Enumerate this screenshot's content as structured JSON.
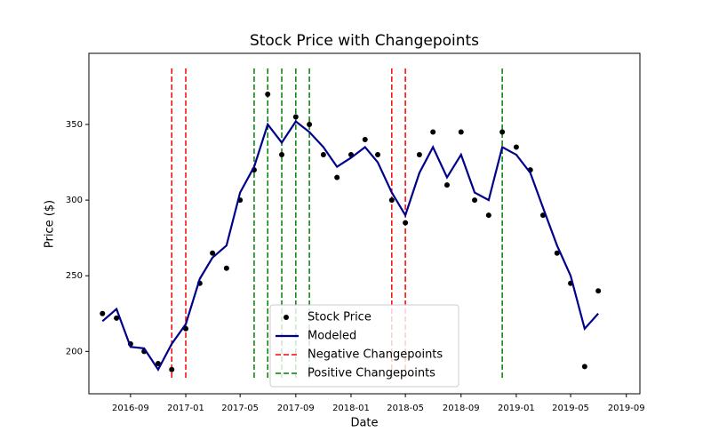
{
  "chart_data": {
    "type": "line",
    "title": "Stock Price with Changepoints",
    "x_label": "Date",
    "y_label": "Price ($)",
    "x": [
      "2016-07",
      "2016-08",
      "2016-09",
      "2016-10",
      "2016-11",
      "2016-12",
      "2017-01",
      "2017-02",
      "2017-03",
      "2017-04",
      "2017-05",
      "2017-06",
      "2017-07",
      "2017-08",
      "2017-09",
      "2017-10",
      "2017-11",
      "2017-12",
      "2018-01",
      "2018-02",
      "2018-03",
      "2018-04",
      "2018-05",
      "2018-06",
      "2018-07",
      "2018-08",
      "2018-09",
      "2018-10",
      "2018-11",
      "2018-12",
      "2019-01",
      "2019-02",
      "2019-03",
      "2019-04",
      "2019-05",
      "2019-06",
      "2019-07"
    ],
    "series": [
      {
        "name": "Stock Price",
        "style": "markers",
        "color": "#000000",
        "values": [
          225,
          222,
          205,
          200,
          192,
          188,
          215,
          245,
          265,
          255,
          300,
          320,
          370,
          330,
          355,
          350,
          330,
          315,
          330,
          340,
          330,
          300,
          285,
          330,
          345,
          310,
          345,
          300,
          290,
          345,
          335,
          320,
          290,
          265,
          245,
          190,
          240
        ]
      },
      {
        "name": "Modeled",
        "style": "line",
        "color": "#00008b",
        "values": [
          220,
          228,
          203,
          202,
          188,
          205,
          218,
          248,
          262,
          270,
          305,
          322,
          350,
          338,
          352,
          345,
          335,
          322,
          328,
          335,
          325,
          305,
          290,
          318,
          335,
          315,
          330,
          305,
          300,
          335,
          330,
          318,
          295,
          270,
          250,
          215,
          225
        ]
      }
    ],
    "changepoints": [
      {
        "name": "Negative Changepoints",
        "color": "#ff0000",
        "x": [
          "2016-12",
          "2017-01",
          "2018-04",
          "2018-05"
        ]
      },
      {
        "name": "Positive Changepoints",
        "color": "#008000",
        "x": [
          "2017-06",
          "2017-07",
          "2017-08",
          "2017-09",
          "2017-10",
          "2018-12"
        ]
      }
    ],
    "xlim": [
      "2016-06",
      "2019-10"
    ],
    "xticks": [
      "2016-09",
      "2017-01",
      "2017-05",
      "2017-09",
      "2018-01",
      "2018-05",
      "2018-09",
      "2019-01",
      "2019-05",
      "2019-09"
    ],
    "ylim": [
      172,
      397
    ],
    "yticks": [
      200,
      250,
      300,
      350
    ],
    "legend": "lower center"
  }
}
